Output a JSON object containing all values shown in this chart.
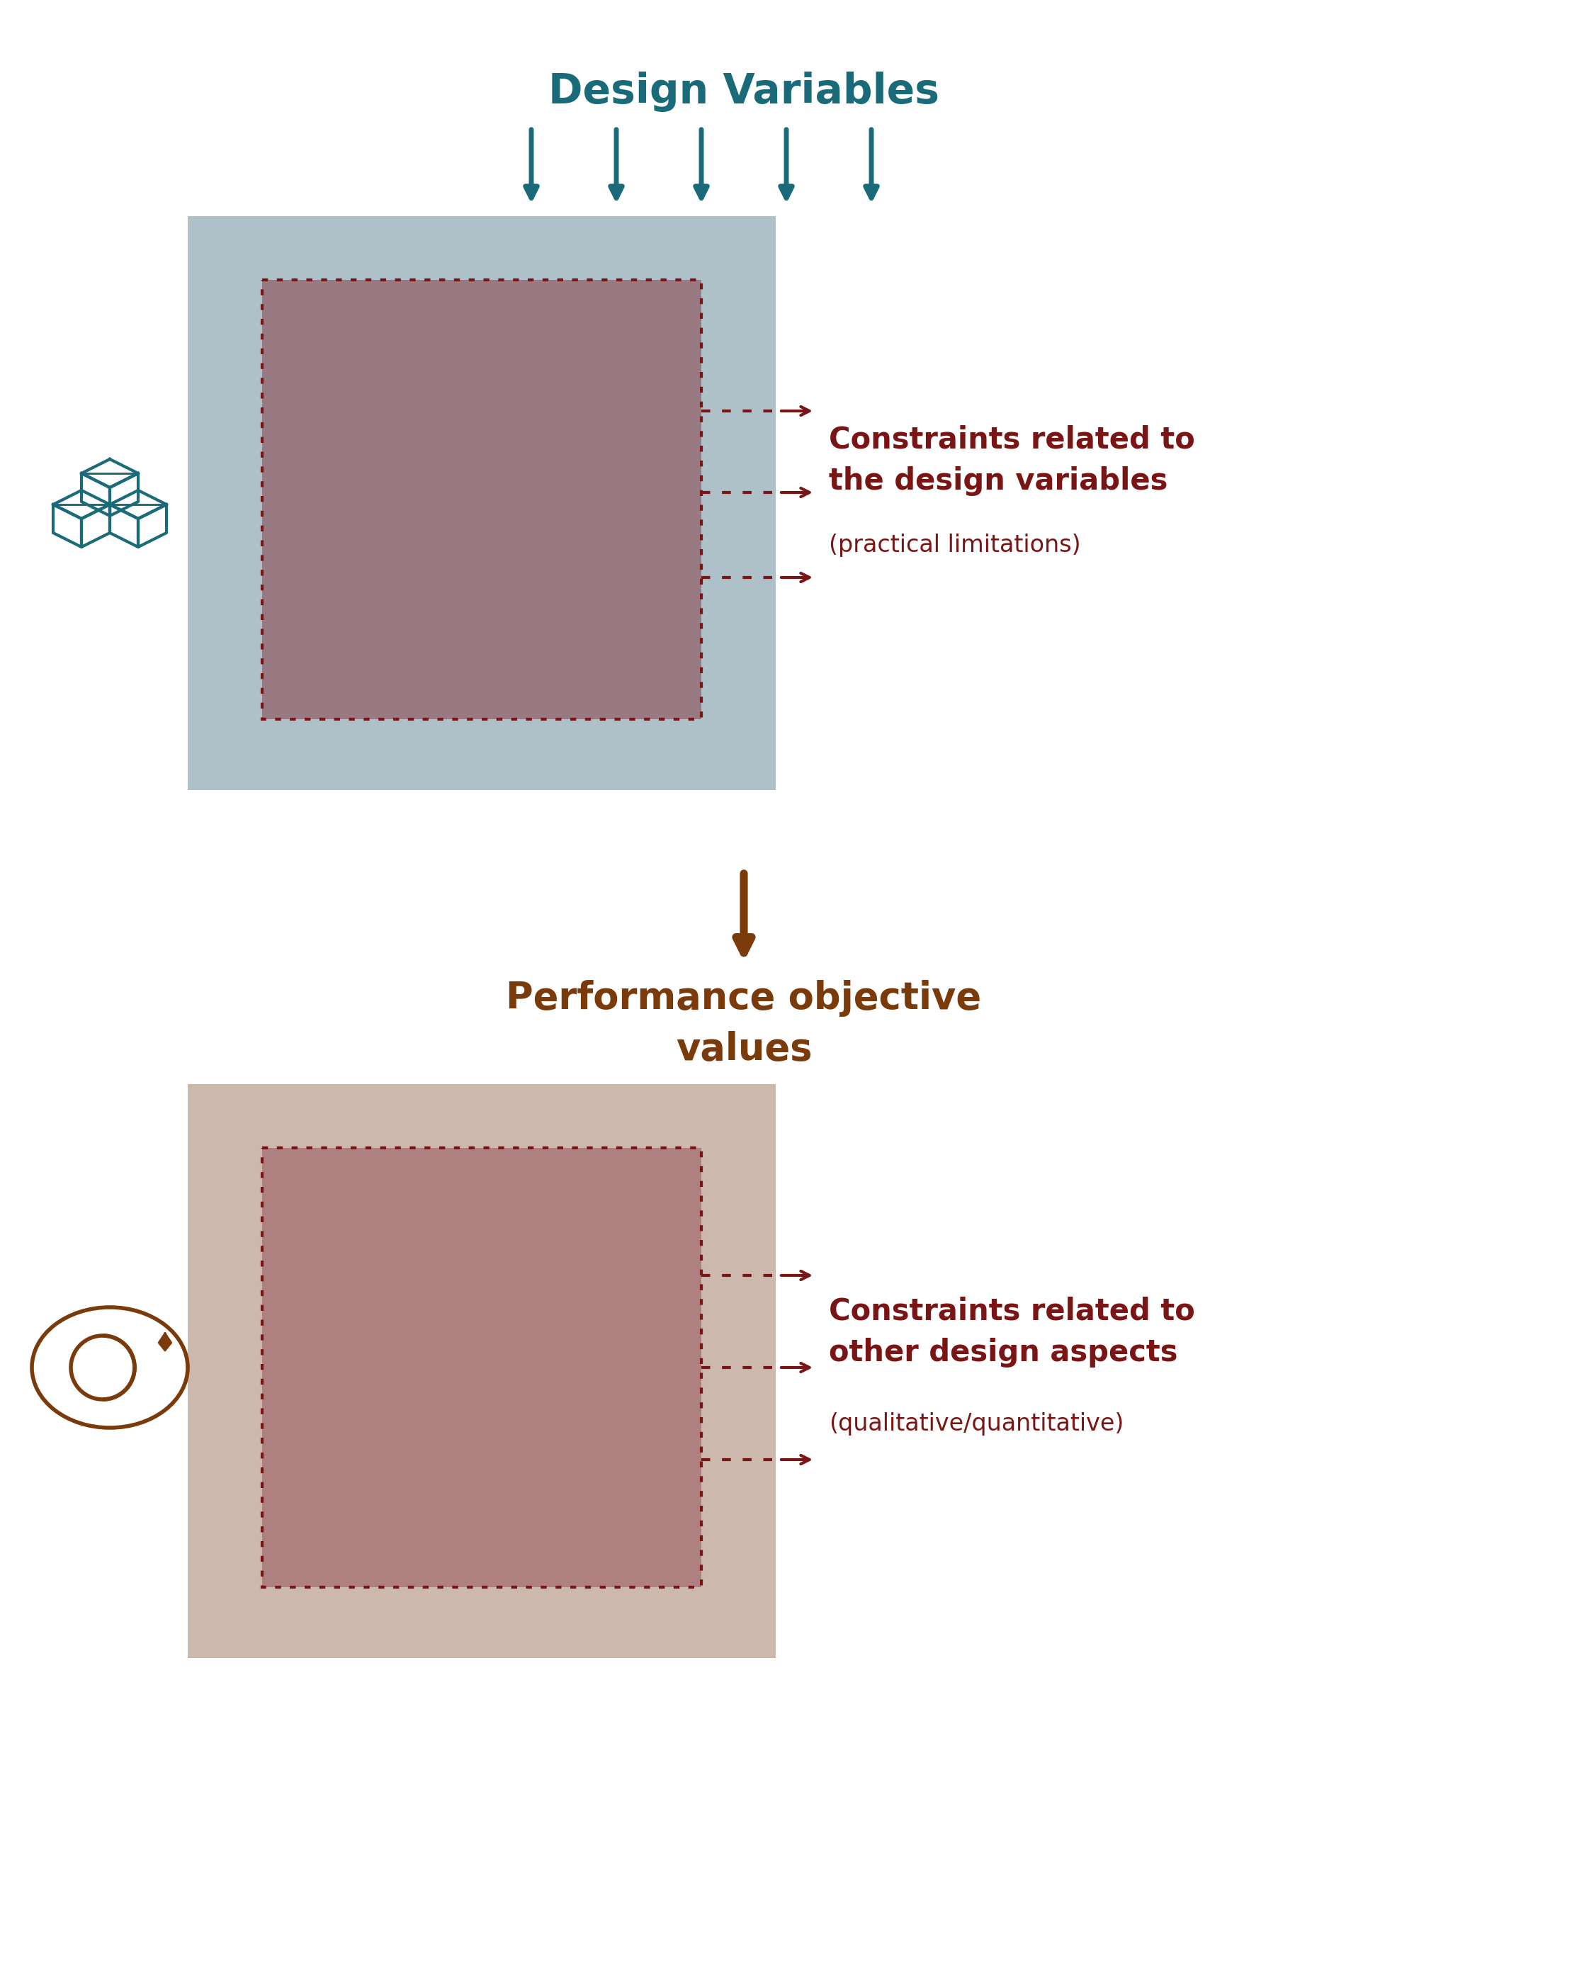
{
  "bg_color": "#ffffff",
  "teal_color": "#1a6b7a",
  "dark_red_color": "#7a1515",
  "brown_color": "#7a3a0a",
  "box1_outer_color": "#aec0c8",
  "box1_inner_color": "#9a7a82",
  "box2_outer_color": "#ccb8ac",
  "box2_inner_color": "#ae8080",
  "dashed_color": "#7a1515",
  "title1": "Design Variables",
  "title1_fontsize": 42,
  "title1_color": "#1a6b7a",
  "mid_label": "Performance objective\nvalues",
  "mid_label_fontsize": 38,
  "mid_label_color": "#7a3a0a",
  "constraint1_text": "Constraints related to\nthe design variables",
  "constraint1_sub": "(practical limitations)",
  "constraint2_text": "Constraints related to\nother design aspects",
  "constraint2_sub": "(qualitative/quantitative)",
  "constraint_fontsize": 30,
  "constraint_sub_fontsize": 24,
  "constraint_color": "#7a1515"
}
